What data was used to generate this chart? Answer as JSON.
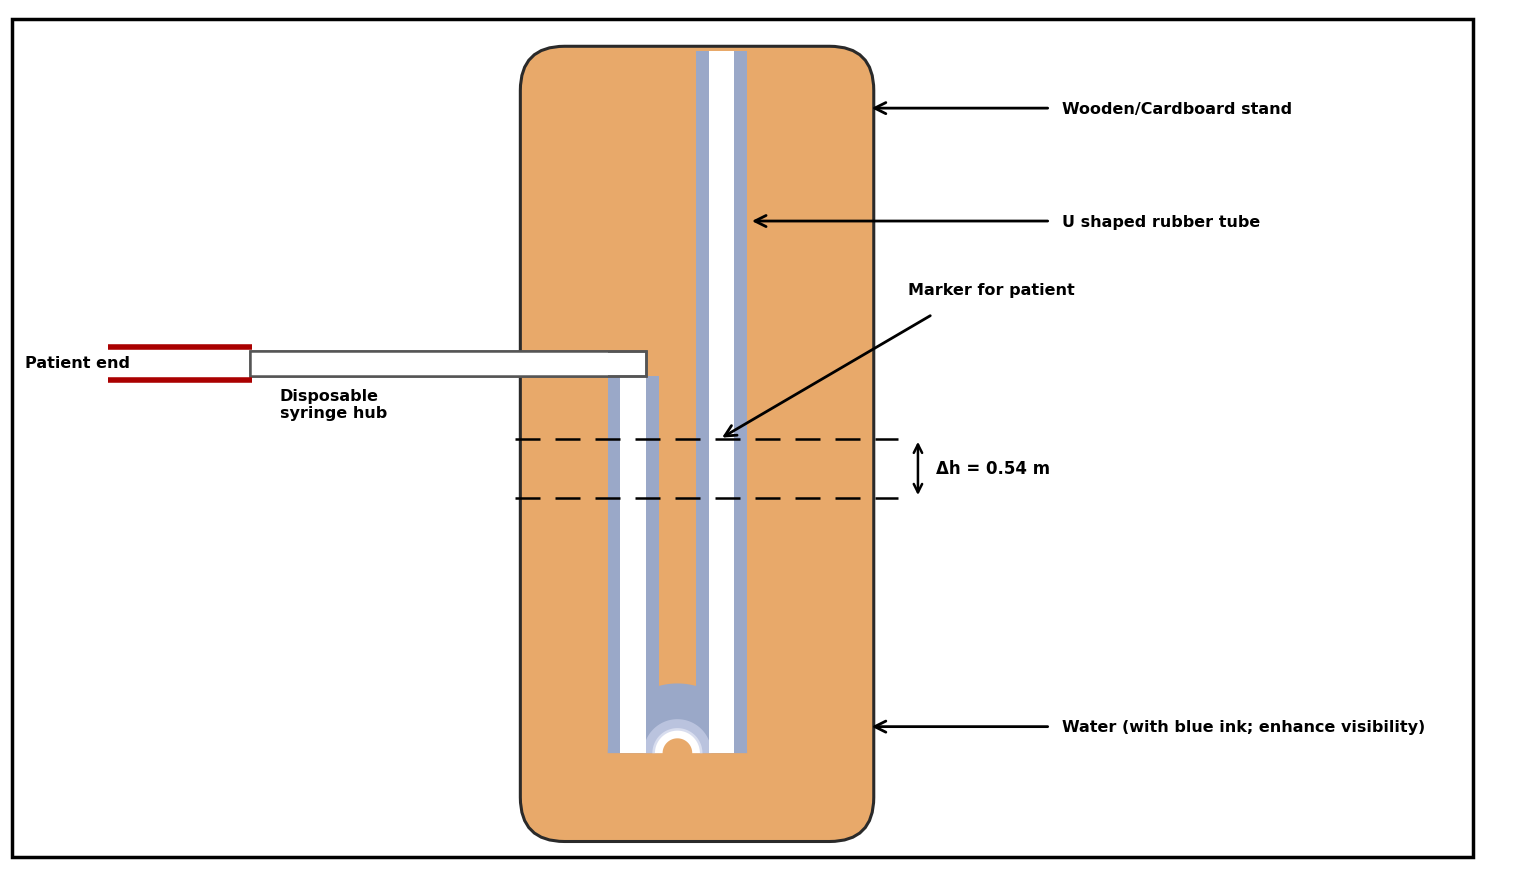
{
  "bg_color": "#ffffff",
  "board_color": "#E8A96A",
  "board_outline": "#2a2a2a",
  "tube_color": "#9aa8c8",
  "tube_highlight": "#c8cfe8",
  "tube_shadow": "#7080a8",
  "tube_inner": "#ffffff",
  "water_color": "#9aa8c8",
  "red_line_color": "#aa0000",
  "label_fontsize": 11.5,
  "annotations": {
    "wooden_cardboard": "Wooden/Cardboard stand",
    "u_tube": "U shaped rubber tube",
    "marker": "Marker for patient",
    "water": "Water (with blue ink; enhance visibility)",
    "patient_end": "Patient end",
    "syringe_hub": "Disposable\nsyringe hub",
    "delta_h": "Δh = 0.54 m"
  }
}
